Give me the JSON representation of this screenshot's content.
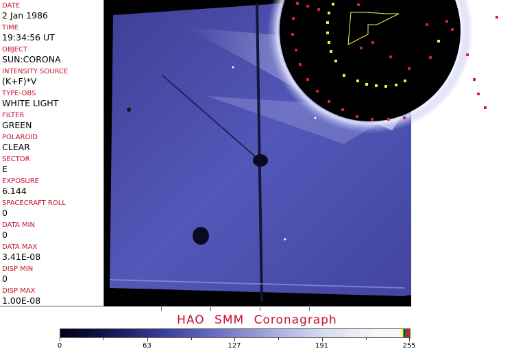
{
  "header_fields": [
    {
      "label": "DATE",
      "value": "2 Jan 1986"
    },
    {
      "label": "TIME",
      "value": "19:34:56 UT"
    },
    {
      "label": "OBJECT",
      "value": "SUN:CORONA"
    },
    {
      "label": "INTENSITY SOURCE",
      "value": "(K+F)*V"
    },
    {
      "label": "TYPE-OBS",
      "value": "WHITE LIGHT"
    },
    {
      "label": "FILTER",
      "value": "GREEN"
    },
    {
      "label": "POLAROID",
      "value": "CLEAR"
    },
    {
      "label": "SECTOR",
      "value": "E"
    },
    {
      "label": "EXPOSURE",
      "value": "6.144"
    },
    {
      "label": "SPACECRAFT ROLL",
      "value": "0"
    },
    {
      "label": "DATA MIN",
      "value": "0"
    },
    {
      "label": "DATA MAX",
      "value": "3.41E-08"
    },
    {
      "label": "DISP MIN",
      "value": "0"
    },
    {
      "label": "DISP MAX",
      "value": "1.00E-08"
    }
  ],
  "title": "HAO  SMM Coronagraph",
  "colorbar": {
    "ticks": [
      "0",
      "63",
      "127",
      "191",
      "255"
    ],
    "colormap": "dark-blue-to-white",
    "top_colors": [
      "#ffff00",
      "#0030c0",
      "#208020",
      "#c82020"
    ]
  },
  "colors": {
    "label": "#c8102e",
    "image_blue": "#4a50b0"
  }
}
